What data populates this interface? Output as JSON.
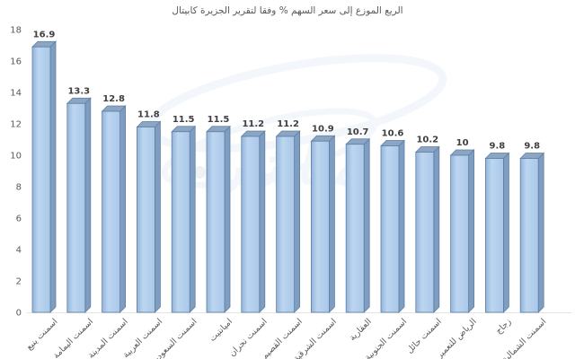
{
  "chart_data": {
    "type": "bar",
    "title": "الريع الموزع إلى سعر السهم % وفقا لتقرير الجزيرة كابيتال",
    "categories": [
      "اسمنت ينبع",
      "اسمنت اليمامة",
      "اسمنت المدينة",
      "اسمنت العربية",
      "اسمنت السعودية",
      "اميانتيت",
      "اسمنت نجران",
      "اسمنت القصيم",
      "اسمنت الشرقية",
      "العقارية",
      "اسمنت الجنوبية",
      "اسمنت حائل",
      "الرياض للتعمير",
      "زجاج",
      "اسمنت الشمالية"
    ],
    "values": [
      16.9,
      13.3,
      12.8,
      11.8,
      11.5,
      11.5,
      11.2,
      11.2,
      10.9,
      10.7,
      10.6,
      10.2,
      10,
      9.8,
      9.8
    ],
    "value_labels": [
      "16.9",
      "13.3",
      "12.8",
      "11.8",
      "11.5",
      "11.5",
      "11.2",
      "11.2",
      "10.9",
      "10.7",
      "10.6",
      "10.2",
      "10",
      "9.8",
      "9.8"
    ],
    "xlabel": "",
    "ylabel": "",
    "ylim": [
      0,
      18
    ],
    "yticks": [
      0,
      2,
      4,
      6,
      8,
      10,
      12,
      14,
      16,
      18
    ],
    "grid": false,
    "legend": false,
    "colors": {
      "bar_front": "#a9c7e8",
      "bar_front_light": "#bcd6f0",
      "bar_front_dark": "#93b4da",
      "bar_side": "#7f9cc1",
      "bar_top": "#8ba5c2",
      "bar_stroke": "#5e7fa3",
      "value_label": "#3f3f3f",
      "axis_label": "#595959",
      "baseline": "#e3e3e3",
      "watermark": "#eaf1f8"
    }
  },
  "watermark": {
    "name": "mubasher-logo-watermark",
    "text": "مباشر"
  }
}
